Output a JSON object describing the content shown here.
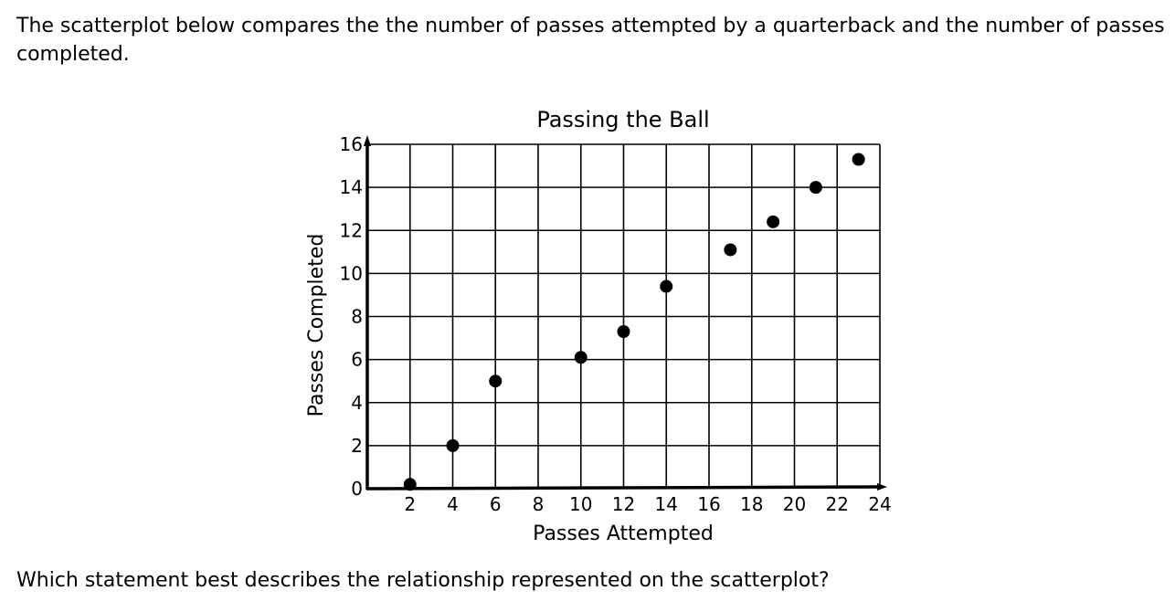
{
  "question": {
    "intro_text": "The scatterplot below compares the the number of passes attempted by a quarterback and the number of passes completed.",
    "prompt_text": "Which statement best describes the relationship represented on the scatterplot?"
  },
  "chart_data": {
    "type": "scatter",
    "title": "Passing the Ball",
    "xlabel": "Passes Attempted",
    "ylabel": "Passes Completed",
    "xlim": [
      0,
      24
    ],
    "ylim": [
      0,
      16
    ],
    "x_ticks": [
      2,
      4,
      6,
      8,
      10,
      12,
      14,
      16,
      18,
      20,
      22,
      24
    ],
    "y_ticks": [
      0,
      2,
      4,
      6,
      8,
      10,
      12,
      14,
      16
    ],
    "grid": true,
    "points": [
      {
        "x": 2,
        "y": 0.2
      },
      {
        "x": 4,
        "y": 2
      },
      {
        "x": 6,
        "y": 5
      },
      {
        "x": 10,
        "y": 6.1
      },
      {
        "x": 12,
        "y": 7.3
      },
      {
        "x": 14,
        "y": 9.4
      },
      {
        "x": 17,
        "y": 11.1
      },
      {
        "x": 19,
        "y": 12.4
      },
      {
        "x": 21,
        "y": 14
      },
      {
        "x": 23,
        "y": 15.3
      }
    ]
  }
}
